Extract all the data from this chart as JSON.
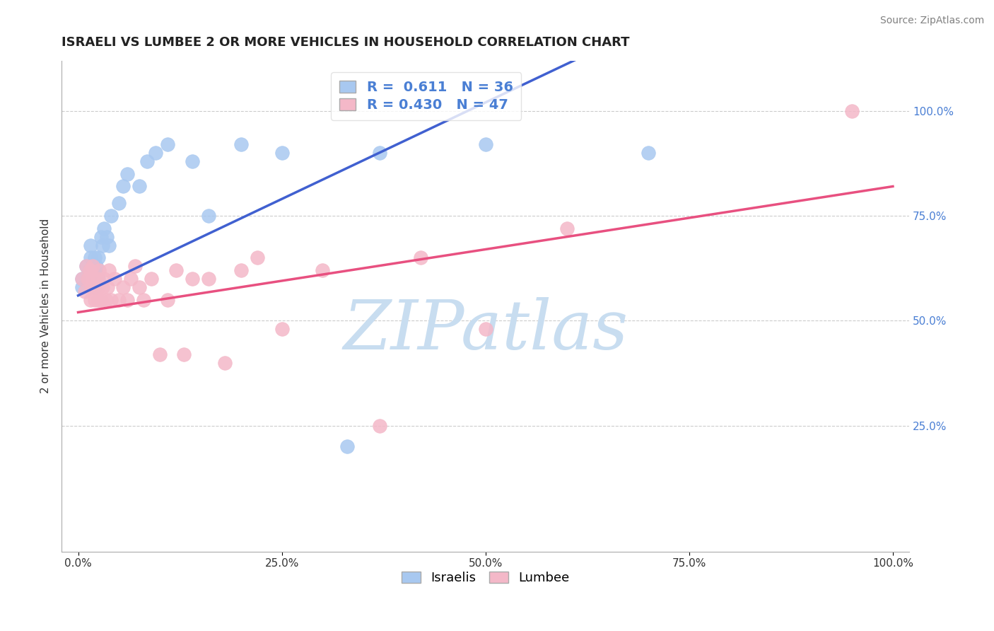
{
  "title": "ISRAELI VS LUMBEE 2 OR MORE VEHICLES IN HOUSEHOLD CORRELATION CHART",
  "source_text": "Source: ZipAtlas.com",
  "ylabel": "2 or more Vehicles in Household",
  "xlabel": "",
  "xlim": [
    -0.02,
    1.02
  ],
  "ylim": [
    -0.05,
    1.12
  ],
  "xticks": [
    0.0,
    0.25,
    0.5,
    0.75,
    1.0
  ],
  "xticklabels": [
    "0.0%",
    "25.0%",
    "50.0%",
    "75.0%",
    "100.0%"
  ],
  "yticks": [
    0.25,
    0.5,
    0.75,
    1.0
  ],
  "yticklabels": [
    "25.0%",
    "50.0%",
    "75.0%",
    "100.0%"
  ],
  "ytick_color": "#4a7fd4",
  "xtick_color": "#333333",
  "israeli_color": "#a8c8f0",
  "lumbee_color": "#f4b8c8",
  "israeli_line_color": "#4060d0",
  "lumbee_line_color": "#e85080",
  "r_israeli": 0.611,
  "n_israeli": 36,
  "r_lumbee": 0.43,
  "n_lumbee": 47,
  "legend_label_israeli": "Israelis",
  "legend_label_lumbee": "Lumbee",
  "watermark": "ZIPatlas",
  "watermark_color": "#c8ddf0",
  "background_color": "#ffffff",
  "israeli_x": [
    0.005,
    0.005,
    0.01,
    0.012,
    0.015,
    0.015,
    0.015,
    0.018,
    0.02,
    0.02,
    0.02,
    0.022,
    0.022,
    0.025,
    0.025,
    0.028,
    0.03,
    0.032,
    0.035,
    0.038,
    0.04,
    0.05,
    0.055,
    0.06,
    0.075,
    0.085,
    0.095,
    0.11,
    0.14,
    0.16,
    0.2,
    0.25,
    0.33,
    0.37,
    0.5,
    0.7
  ],
  "israeli_y": [
    0.58,
    0.6,
    0.63,
    0.6,
    0.62,
    0.65,
    0.68,
    0.6,
    0.58,
    0.62,
    0.65,
    0.6,
    0.63,
    0.6,
    0.65,
    0.7,
    0.68,
    0.72,
    0.7,
    0.68,
    0.75,
    0.78,
    0.82,
    0.85,
    0.82,
    0.88,
    0.9,
    0.92,
    0.88,
    0.75,
    0.92,
    0.9,
    0.2,
    0.9,
    0.92,
    0.9
  ],
  "lumbee_x": [
    0.005,
    0.008,
    0.01,
    0.012,
    0.014,
    0.015,
    0.016,
    0.018,
    0.018,
    0.02,
    0.022,
    0.024,
    0.025,
    0.025,
    0.026,
    0.028,
    0.03,
    0.032,
    0.034,
    0.036,
    0.038,
    0.04,
    0.045,
    0.05,
    0.055,
    0.06,
    0.065,
    0.07,
    0.075,
    0.08,
    0.09,
    0.1,
    0.11,
    0.12,
    0.13,
    0.14,
    0.16,
    0.18,
    0.2,
    0.22,
    0.25,
    0.3,
    0.37,
    0.42,
    0.5,
    0.6,
    0.95
  ],
  "lumbee_y": [
    0.6,
    0.57,
    0.63,
    0.6,
    0.62,
    0.55,
    0.58,
    0.6,
    0.63,
    0.55,
    0.58,
    0.6,
    0.55,
    0.58,
    0.62,
    0.55,
    0.58,
    0.6,
    0.55,
    0.58,
    0.62,
    0.55,
    0.6,
    0.55,
    0.58,
    0.55,
    0.6,
    0.63,
    0.58,
    0.55,
    0.6,
    0.42,
    0.55,
    0.62,
    0.42,
    0.6,
    0.6,
    0.4,
    0.62,
    0.65,
    0.48,
    0.62,
    0.25,
    0.65,
    0.48,
    0.72,
    1.0
  ],
  "title_fontsize": 13,
  "axis_label_fontsize": 11,
  "tick_fontsize": 11,
  "legend_fontsize": 13,
  "r_fontsize": 14,
  "grid_color": "#cccccc",
  "grid_style": "--"
}
